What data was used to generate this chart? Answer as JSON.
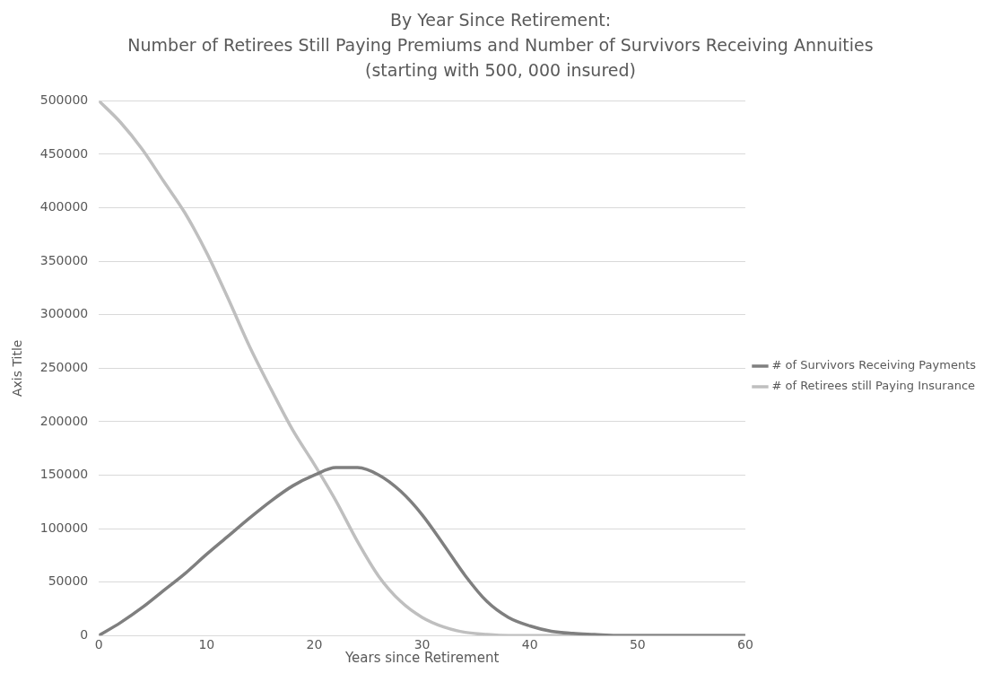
{
  "chart_data": {
    "type": "line",
    "title": "By Year Since Retirement:",
    "subtitle": "Number of Retirees Still Paying Premiums and Number of Survivors Receiving Annuities (starting with 500, 000 insured)",
    "xlabel": "Years since Retirement",
    "ylabel": "Axis Title",
    "x": [
      0,
      2,
      4,
      6,
      8,
      10,
      12,
      14,
      16,
      18,
      20,
      22,
      24,
      26,
      28,
      30,
      32,
      34,
      36,
      38,
      40,
      42,
      44,
      46,
      48,
      50,
      52,
      54,
      56,
      58,
      60
    ],
    "series": [
      {
        "name": "# of Survivors Receiving Payments",
        "color": "#7f7f7f",
        "values": [
          0,
          12000,
          26000,
          42000,
          58000,
          76000,
          93000,
          110000,
          126000,
          140000,
          150000,
          157000,
          157000,
          150000,
          135000,
          113000,
          85000,
          56000,
          32000,
          17000,
          9000,
          4000,
          2000,
          1000,
          0,
          0,
          0,
          0,
          0,
          0,
          0
        ]
      },
      {
        "name": "# of Retirees still Paying Insurance",
        "color": "#bfbfbf",
        "values": [
          500000,
          480000,
          455000,
          425000,
          395000,
          358000,
          315000,
          270000,
          230000,
          192000,
          160000,
          126000,
          88000,
          55000,
          32000,
          17000,
          8000,
          3000,
          1000,
          0,
          0,
          0,
          0,
          0,
          0,
          0,
          0,
          0,
          0,
          0,
          0
        ]
      }
    ],
    "xlim": [
      0,
      60
    ],
    "xticks": [
      0,
      10,
      20,
      30,
      40,
      50,
      60
    ],
    "ylim": [
      0,
      500000
    ],
    "yticks": [
      0,
      50000,
      100000,
      150000,
      200000,
      250000,
      300000,
      350000,
      400000,
      450000,
      500000
    ],
    "grid": "y",
    "legend": "right",
    "marker": "none",
    "line_style": "solid"
  }
}
